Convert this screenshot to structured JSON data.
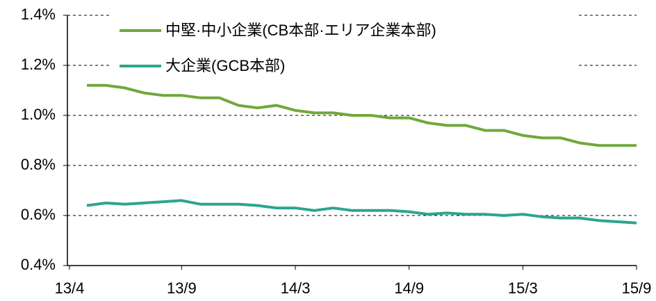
{
  "chart_data": {
    "type": "line",
    "categories": [
      "13/4",
      null,
      null,
      null,
      null,
      "13/9",
      null,
      null,
      null,
      null,
      null,
      "14/3",
      null,
      null,
      null,
      null,
      null,
      "14/9",
      null,
      null,
      null,
      null,
      null,
      "15/3",
      null,
      null,
      null,
      null,
      null,
      "15/9"
    ],
    "series": [
      {
        "name": "中堅·中小企業(CB本部·エリア企業本部)",
        "color": "#70a83b",
        "values": [
          1.12,
          1.12,
          1.11,
          1.09,
          1.08,
          1.08,
          1.07,
          1.07,
          1.04,
          1.03,
          1.04,
          1.02,
          1.01,
          1.01,
          1.0,
          1.0,
          0.99,
          0.99,
          0.97,
          0.96,
          0.96,
          0.94,
          0.94,
          0.92,
          0.91,
          0.91,
          0.89,
          0.88,
          0.88,
          0.88
        ]
      },
      {
        "name": "大企業(GCB本部)",
        "color": "#2ca58d",
        "values": [
          0.64,
          0.65,
          0.645,
          0.65,
          0.655,
          0.66,
          0.645,
          0.645,
          0.645,
          0.64,
          0.63,
          0.63,
          0.62,
          0.63,
          0.62,
          0.62,
          0.62,
          0.615,
          0.605,
          0.61,
          0.605,
          0.605,
          0.6,
          0.605,
          0.595,
          0.59,
          0.59,
          0.58,
          0.575,
          0.57
        ]
      }
    ],
    "ylim": [
      0.4,
      1.4
    ],
    "yticks": [
      {
        "value": 0.4,
        "label": "0.4%"
      },
      {
        "value": 0.6,
        "label": "0.6%"
      },
      {
        "value": 0.8,
        "label": "0.8%"
      },
      {
        "value": 1.0,
        "label": "1.0%"
      },
      {
        "value": 1.2,
        "label": "1.2%"
      },
      {
        "value": 1.4,
        "label": "1.4%"
      }
    ],
    "grid": true,
    "legend": "top"
  }
}
